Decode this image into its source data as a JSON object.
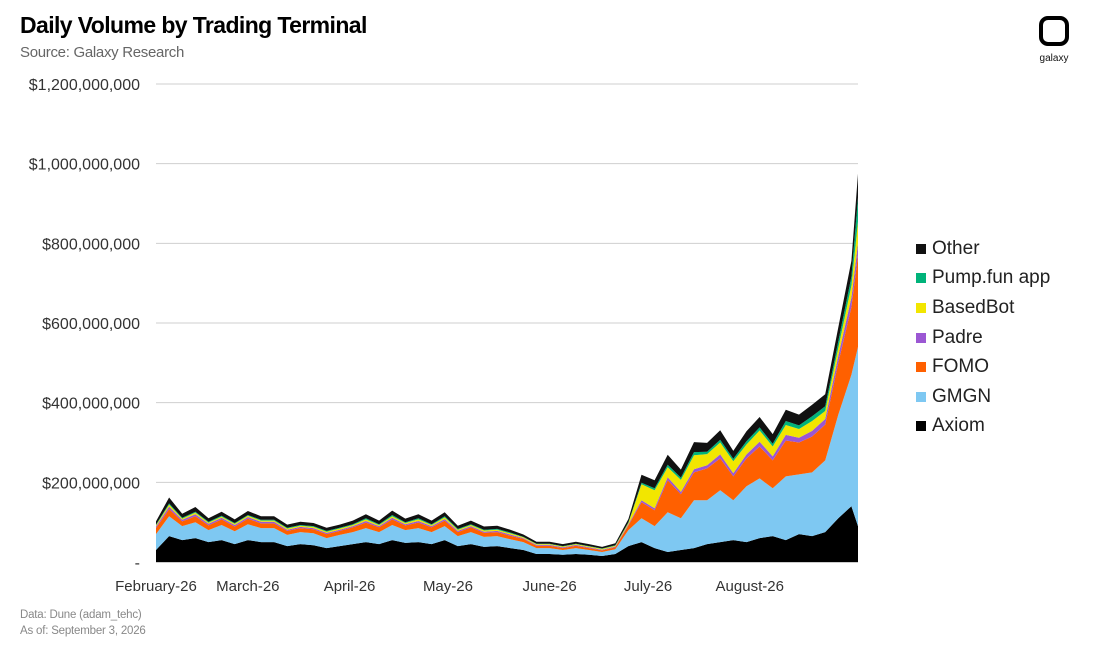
{
  "colors": {
    "Other": "#111111",
    "Pump.fun app": "#00b37a",
    "BasedBot": "#f2e600",
    "Padre": "#9b57d3",
    "FOMO": "#ff6000",
    "GMGN": "#7ec8f2",
    "Axiom": "#000000"
  },
  "logo": {
    "text": "galaxy",
    "icon": "galaxy-logo-icon"
  },
  "footer": {
    "line1": "Data: Dune (adam_tehc)",
    "line2": "As of: September 3, 2026"
  },
  "chart_data": {
    "type": "area",
    "stacked": true,
    "title": "Daily Volume by Trading Terminal",
    "subtitle": "Source: Galaxy Research",
    "xlabel": "",
    "ylabel": "",
    "ylim": [
      0,
      1200000000
    ],
    "yticks": [
      0,
      200000000,
      400000000,
      600000000,
      800000000,
      1000000000,
      1200000000
    ],
    "ytick_labels": [
      "-",
      "$200,000,000",
      "$400,000,000",
      "$600,000,000",
      "$800,000,000",
      "$1,000,000,000",
      "$1,200,000,000"
    ],
    "x_dates": [
      "2026-02-01",
      "2026-02-05",
      "2026-02-09",
      "2026-02-13",
      "2026-02-17",
      "2026-02-21",
      "2026-02-25",
      "2026-03-01",
      "2026-03-05",
      "2026-03-09",
      "2026-03-13",
      "2026-03-17",
      "2026-03-21",
      "2026-03-25",
      "2026-03-29",
      "2026-04-02",
      "2026-04-06",
      "2026-04-10",
      "2026-04-14",
      "2026-04-18",
      "2026-04-22",
      "2026-04-26",
      "2026-04-30",
      "2026-05-04",
      "2026-05-08",
      "2026-05-12",
      "2026-05-16",
      "2026-05-20",
      "2026-05-24",
      "2026-05-28",
      "2026-06-01",
      "2026-06-05",
      "2026-06-09",
      "2026-06-13",
      "2026-06-17",
      "2026-06-21",
      "2026-06-25",
      "2026-06-29",
      "2026-07-03",
      "2026-07-07",
      "2026-07-11",
      "2026-07-15",
      "2026-07-19",
      "2026-07-23",
      "2026-07-27",
      "2026-07-31",
      "2026-08-04",
      "2026-08-08",
      "2026-08-12",
      "2026-08-16",
      "2026-08-20",
      "2026-08-24",
      "2026-08-28",
      "2026-09-01",
      "2026-09-03"
    ],
    "xtick_dates": [
      "2026-02-01",
      "2026-03-01",
      "2026-04-01",
      "2026-05-01",
      "2026-06-01",
      "2026-07-01",
      "2026-08-01"
    ],
    "xtick_labels": [
      "February-26",
      "March-26",
      "April-26",
      "May-26",
      "June-26",
      "July-26",
      "August-26"
    ],
    "series": [
      {
        "name": "Axiom",
        "values": [
          30,
          65,
          55,
          60,
          50,
          55,
          45,
          55,
          50,
          50,
          40,
          45,
          42,
          35,
          40,
          45,
          50,
          45,
          55,
          48,
          50,
          45,
          55,
          40,
          45,
          38,
          40,
          35,
          30,
          20,
          20,
          18,
          20,
          18,
          15,
          20,
          40,
          50,
          35,
          25,
          30,
          35,
          45,
          50,
          55,
          50,
          60,
          65,
          55,
          70,
          65,
          75,
          110,
          140,
          90
        ]
      },
      {
        "name": "GMGN",
        "values": [
          40,
          50,
          35,
          40,
          30,
          38,
          32,
          40,
          35,
          35,
          28,
          30,
          30,
          25,
          28,
          30,
          35,
          30,
          38,
          32,
          35,
          30,
          35,
          25,
          30,
          25,
          25,
          22,
          20,
          15,
          15,
          12,
          15,
          12,
          10,
          12,
          40,
          60,
          55,
          100,
          80,
          120,
          110,
          130,
          100,
          140,
          150,
          120,
          160,
          150,
          160,
          180,
          260,
          330,
          450
        ]
      },
      {
        "name": "FOMO",
        "values": [
          15,
          18,
          12,
          15,
          12,
          14,
          12,
          14,
          12,
          12,
          10,
          10,
          10,
          10,
          10,
          12,
          14,
          12,
          14,
          12,
          14,
          12,
          14,
          10,
          12,
          10,
          10,
          9,
          8,
          6,
          6,
          5,
          6,
          5,
          4,
          5,
          12,
          40,
          40,
          80,
          60,
          70,
          80,
          80,
          60,
          70,
          80,
          70,
          90,
          80,
          90,
          90,
          130,
          170,
          230
        ]
      },
      {
        "name": "Padre",
        "values": [
          4,
          6,
          4,
          5,
          4,
          4,
          4,
          4,
          4,
          4,
          3,
          3,
          3,
          3,
          3,
          3,
          4,
          3,
          4,
          3,
          4,
          3,
          4,
          3,
          3,
          3,
          3,
          3,
          2,
          2,
          2,
          2,
          2,
          2,
          2,
          2,
          3,
          5,
          5,
          8,
          6,
          8,
          8,
          10,
          8,
          10,
          12,
          10,
          14,
          12,
          14,
          14,
          18,
          24,
          30
        ]
      },
      {
        "name": "BasedBot",
        "values": [
          3,
          5,
          3,
          4,
          3,
          3,
          3,
          3,
          3,
          3,
          3,
          3,
          3,
          3,
          3,
          3,
          4,
          3,
          4,
          3,
          4,
          3,
          4,
          3,
          3,
          3,
          3,
          3,
          2,
          2,
          2,
          2,
          2,
          2,
          2,
          2,
          3,
          40,
          45,
          25,
          30,
          35,
          28,
          30,
          30,
          25,
          28,
          25,
          25,
          22,
          25,
          20,
          20,
          30,
          55
        ]
      },
      {
        "name": "Pump.fun app",
        "values": [
          2,
          3,
          2,
          2,
          2,
          2,
          2,
          2,
          2,
          2,
          2,
          2,
          2,
          2,
          2,
          2,
          3,
          2,
          3,
          2,
          3,
          2,
          3,
          2,
          2,
          2,
          2,
          2,
          1,
          1,
          1,
          1,
          1,
          1,
          1,
          1,
          2,
          4,
          5,
          6,
          6,
          8,
          6,
          7,
          6,
          8,
          8,
          7,
          10,
          9,
          12,
          12,
          16,
          22,
          60
        ]
      },
      {
        "name": "Other",
        "values": [
          8,
          15,
          10,
          12,
          9,
          10,
          9,
          10,
          9,
          9,
          8,
          8,
          8,
          8,
          8,
          9,
          10,
          9,
          11,
          9,
          10,
          9,
          10,
          8,
          9,
          8,
          8,
          7,
          6,
          5,
          5,
          5,
          5,
          5,
          4,
          5,
          8,
          20,
          20,
          25,
          20,
          25,
          22,
          24,
          20,
          25,
          26,
          24,
          28,
          27,
          29,
          30,
          35,
          40,
          60
        ]
      }
    ],
    "value_unit": "millions USD",
    "legend": [
      "Other",
      "Pump.fun app",
      "BasedBot",
      "Padre",
      "FOMO",
      "GMGN",
      "Axiom"
    ],
    "legend_position": "right",
    "grid": true
  }
}
